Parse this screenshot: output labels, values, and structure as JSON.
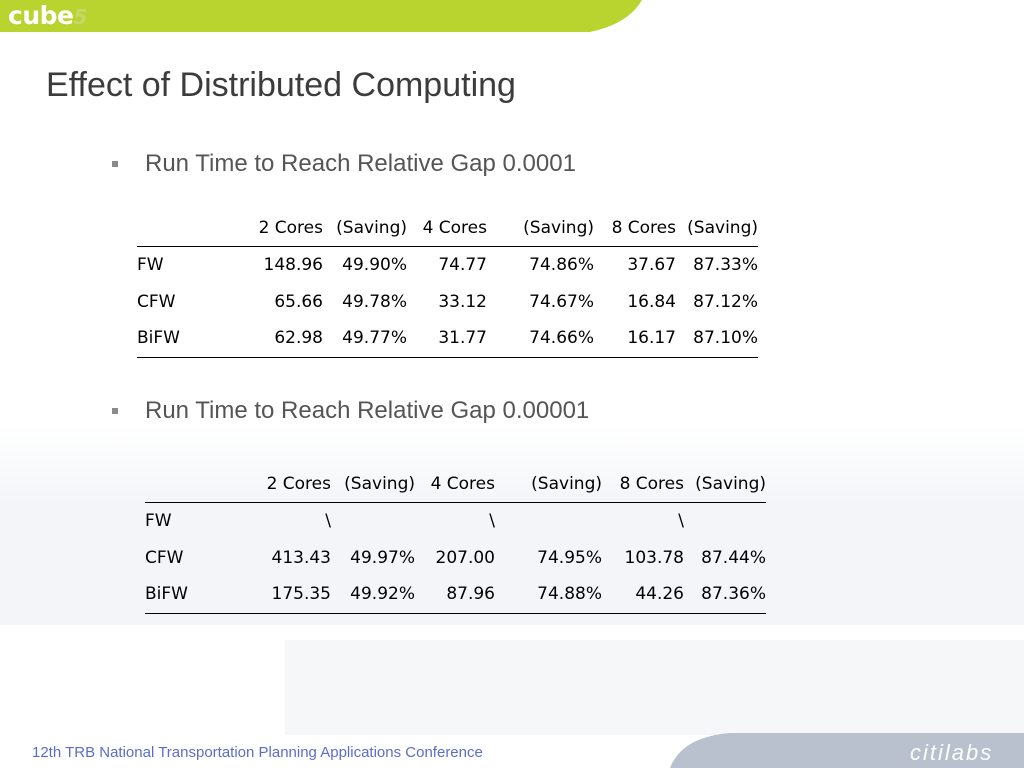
{
  "header": {
    "logo_main": "cube",
    "logo_version": "5"
  },
  "slide": {
    "title": "Effect of Distributed Computing",
    "bullets": [
      "Run Time to Reach Relative Gap 0.0001",
      "Run Time to Reach Relative Gap 0.00001"
    ]
  },
  "tables": [
    {
      "headers": [
        "",
        "2 Cores",
        "(Saving)",
        "4 Cores",
        "(Saving)",
        "8 Cores",
        "(Saving)"
      ],
      "rows": [
        [
          "FW",
          "148.96",
          "49.90%",
          "74.77",
          "74.86%",
          "37.67",
          "87.33%"
        ],
        [
          "CFW",
          "65.66",
          "49.78%",
          "33.12",
          "74.67%",
          "16.84",
          "87.12%"
        ],
        [
          "BiFW",
          "62.98",
          "49.77%",
          "31.77",
          "74.66%",
          "16.17",
          "87.10%"
        ]
      ]
    },
    {
      "headers": [
        "",
        "2 Cores",
        "(Saving)",
        "4 Cores",
        "(Saving)",
        "8 Cores",
        "(Saving)"
      ],
      "rows": [
        [
          "FW",
          "\\",
          "",
          "\\",
          "",
          "\\",
          ""
        ],
        [
          "CFW",
          "413.43",
          "49.97%",
          "207.00",
          "74.95%",
          "103.78",
          "87.44%"
        ],
        [
          "BiFW",
          "175.35",
          "49.92%",
          "87.96",
          "74.88%",
          "44.26",
          "87.36%"
        ]
      ]
    }
  ],
  "footer": {
    "conference": "12th TRB National Transportation Planning Applications Conference",
    "brand": "citilabs"
  },
  "colors": {
    "banner_green": "#b9d42f",
    "footer_blue_text": "#5a6ec8",
    "footer_banner": "#b8c1cd"
  }
}
